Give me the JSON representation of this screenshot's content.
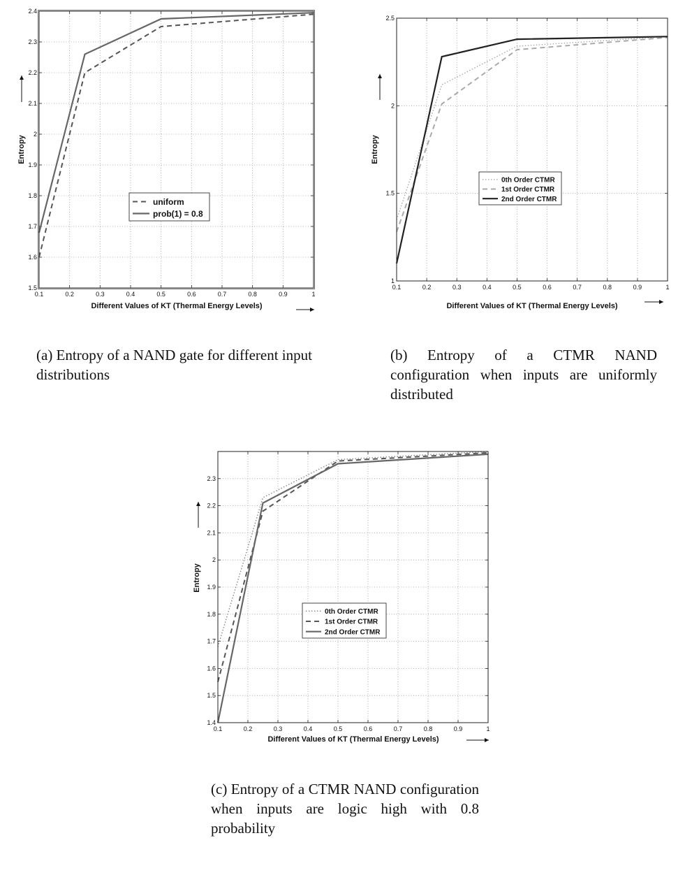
{
  "chart_data": [
    {
      "id": "a",
      "type": "line",
      "xlabel": "Different Values of KT (Thermal Energy Levels)",
      "ylabel": "Entropy",
      "xlim": [
        0.1,
        1
      ],
      "ylim": [
        1.5,
        2.4
      ],
      "xticks": [
        0.1,
        0.2,
        0.3,
        0.4,
        0.5,
        0.6,
        0.7,
        0.8,
        0.9,
        1
      ],
      "xtick_labels": [
        "0.1",
        "0.2",
        "0.3",
        "0.4",
        "0.5",
        "0.6",
        "0.7",
        "0.8",
        "0.9",
        "1"
      ],
      "yticks": [
        1.5,
        1.6,
        1.7,
        1.8,
        1.9,
        2,
        2.1,
        2.2,
        2.3,
        2.4
      ],
      "ytick_labels": [
        "1.5",
        "1.6",
        "1.7",
        "1.8",
        "1.9",
        "2",
        "2.1",
        "2.2",
        "2.3",
        "2.4"
      ],
      "grid": true,
      "legend_position": "center-lower",
      "series": [
        {
          "name": "uniform",
          "style": "dashed",
          "color": "#555555",
          "x": [
            0.1,
            0.25,
            0.5,
            1
          ],
          "y": [
            1.6,
            2.2,
            2.35,
            2.39
          ]
        },
        {
          "name": "prob(1) = 0.8",
          "style": "solid",
          "color": "#666666",
          "x": [
            0.1,
            0.25,
            0.5,
            1
          ],
          "y": [
            1.68,
            2.26,
            2.375,
            2.395
          ]
        }
      ],
      "caption": "(a) Entropy of a NAND gate for different input distributions"
    },
    {
      "id": "b",
      "type": "line",
      "xlabel": "Different Values of KT (Thermal Energy Levels)",
      "ylabel": "Entropy",
      "xlim": [
        0.1,
        1
      ],
      "ylim": [
        1,
        2.5
      ],
      "xticks": [
        0.1,
        0.2,
        0.3,
        0.4,
        0.5,
        0.6,
        0.7,
        0.8,
        0.9,
        1
      ],
      "xtick_labels": [
        "0.1",
        "0.2",
        "0.3",
        "0.4",
        "0.5",
        "0.6",
        "0.7",
        "0.8",
        "0.9",
        "1"
      ],
      "yticks": [
        1,
        1.5,
        2,
        2.5
      ],
      "ytick_labels": [
        "1",
        "1.5",
        "2",
        "2.5"
      ],
      "grid": true,
      "legend_position": "center",
      "series": [
        {
          "name": "0th Order CTMR",
          "style": "dotted",
          "color": "#aaaaaa",
          "x": [
            0.1,
            0.25,
            0.5,
            1
          ],
          "y": [
            1.35,
            2.12,
            2.34,
            2.395
          ]
        },
        {
          "name": "1st Order CTMR",
          "style": "dashed",
          "color": "#aaaaaa",
          "x": [
            0.1,
            0.25,
            0.5,
            1
          ],
          "y": [
            1.28,
            2.01,
            2.32,
            2.39
          ]
        },
        {
          "name": "2nd Order CTMR",
          "style": "solid",
          "color": "#222222",
          "x": [
            0.1,
            0.25,
            0.5,
            1
          ],
          "y": [
            1.1,
            2.28,
            2.38,
            2.395
          ]
        }
      ],
      "caption": "(b) Entropy of a CTMR NAND configuration when inputs are uniformly distributed"
    },
    {
      "id": "c",
      "type": "line",
      "xlabel": "Different Values of KT (Thermal Energy Levels)",
      "ylabel": "Entropy",
      "xlim": [
        0.1,
        1
      ],
      "ylim": [
        1.4,
        2.4
      ],
      "xticks": [
        0.1,
        0.2,
        0.3,
        0.4,
        0.5,
        0.6,
        0.7,
        0.8,
        0.9,
        1
      ],
      "xtick_labels": [
        "0.1",
        "0.2",
        "0.3",
        "0.4",
        "0.5",
        "0.6",
        "0.7",
        "0.8",
        "0.9",
        "1"
      ],
      "yticks": [
        1.4,
        1.5,
        1.6,
        1.7,
        1.8,
        1.9,
        2,
        2.1,
        2.2,
        2.3
      ],
      "ytick_labels": [
        "1.4",
        "1.5",
        "1.6",
        "1.7",
        "1.8",
        "1.9",
        "2",
        "2.1",
        "2.2",
        "2.3"
      ],
      "grid": true,
      "legend_position": "center",
      "series": [
        {
          "name": "0th Order CTMR",
          "style": "dotted",
          "color": "#888888",
          "x": [
            0.1,
            0.25,
            0.5,
            1
          ],
          "y": [
            1.68,
            2.23,
            2.37,
            2.4
          ]
        },
        {
          "name": "1st Order CTMR",
          "style": "dashed",
          "color": "#555555",
          "x": [
            0.1,
            0.25,
            0.5,
            1
          ],
          "y": [
            1.55,
            2.18,
            2.365,
            2.395
          ]
        },
        {
          "name": "2nd Order CTMR",
          "style": "solid",
          "color": "#666666",
          "x": [
            0.1,
            0.25,
            0.5,
            1
          ],
          "y": [
            1.4,
            2.21,
            2.355,
            2.39
          ]
        }
      ],
      "caption": "(c) Entropy of a CTMR NAND configuration when inputs are logic high with 0.8 probability"
    }
  ]
}
